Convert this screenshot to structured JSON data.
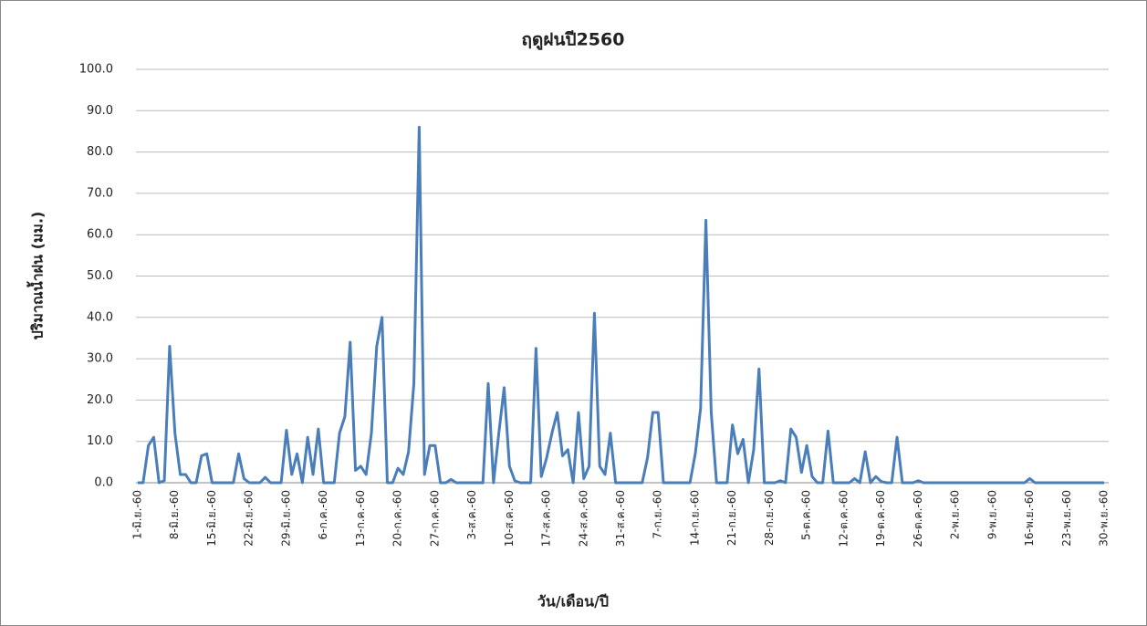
{
  "chart_data": {
    "type": "line",
    "title": "ฤดูฝนปี2560",
    "x_label": "วัน/เดือน/ปี",
    "y_label": "ปริมาณน้ำฝน (มม.)",
    "categories": [
      "1-มิ.ย.-60",
      null,
      null,
      null,
      null,
      null,
      null,
      "8-มิ.ย.-60",
      null,
      null,
      null,
      null,
      null,
      null,
      "15-มิ.ย.-60",
      null,
      null,
      null,
      null,
      null,
      null,
      "22-มิ.ย.-60",
      null,
      null,
      null,
      null,
      null,
      null,
      "29-มิ.ย.-60",
      null,
      null,
      null,
      null,
      null,
      null,
      "6-ก.ค.-60",
      null,
      null,
      null,
      null,
      null,
      null,
      "13-ก.ค.-60",
      null,
      null,
      null,
      null,
      null,
      null,
      "20-ก.ค.-60",
      null,
      null,
      null,
      null,
      null,
      null,
      "27-ก.ค.-60",
      null,
      null,
      null,
      null,
      null,
      null,
      "3-ส.ค.-60",
      null,
      null,
      null,
      null,
      null,
      null,
      "10-ส.ค.-60",
      null,
      null,
      null,
      null,
      null,
      null,
      "17-ส.ค.-60",
      null,
      null,
      null,
      null,
      null,
      null,
      "24-ส.ค.-60",
      null,
      null,
      null,
      null,
      null,
      null,
      "31-ส.ค.-60",
      null,
      null,
      null,
      null,
      null,
      null,
      "7-ก.ย.-60",
      null,
      null,
      null,
      null,
      null,
      null,
      "14-ก.ย.-60",
      null,
      null,
      null,
      null,
      null,
      null,
      "21-ก.ย.-60",
      null,
      null,
      null,
      null,
      null,
      null,
      "28-ก.ย.-60",
      null,
      null,
      null,
      null,
      null,
      null,
      "5-ต.ค.-60",
      null,
      null,
      null,
      null,
      null,
      null,
      "12-ต.ค.-60",
      null,
      null,
      null,
      null,
      null,
      null,
      "19-ต.ค.-60",
      null,
      null,
      null,
      null,
      null,
      null,
      "26-ต.ค.-60",
      null,
      null,
      null,
      null,
      null,
      null,
      "2-พ.ย.-60",
      null,
      null,
      null,
      null,
      null,
      null,
      "9-พ.ย.-60",
      null,
      null,
      null,
      null,
      null,
      null,
      "16-พ.ย.-60",
      null,
      null,
      null,
      null,
      null,
      null,
      "23-พ.ย.-60",
      null,
      null,
      null,
      null,
      null,
      null,
      "30-พ.ย.-60"
    ],
    "values": [
      0,
      0,
      9,
      11,
      0,
      0.5,
      33,
      12,
      2,
      2,
      0,
      0,
      6.5,
      7,
      0,
      0,
      0,
      0,
      0,
      7,
      1,
      0,
      0,
      0,
      1.3,
      0,
      0,
      0,
      12.7,
      2,
      7,
      0,
      11,
      2,
      13,
      0,
      0,
      0,
      12,
      16,
      34,
      3,
      4,
      2,
      12,
      33,
      40,
      0,
      0,
      3.5,
      2,
      7.5,
      24,
      86,
      2,
      9,
      9,
      0,
      0,
      0.8,
      0,
      0,
      0,
      0,
      0,
      0,
      24,
      0,
      12,
      23,
      4,
      0.5,
      0,
      0,
      0,
      32.5,
      1.5,
      6,
      12,
      17,
      6.5,
      8,
      0,
      17,
      1,
      4,
      41,
      4,
      2,
      12,
      0,
      0,
      0,
      0,
      0,
      0,
      6,
      17,
      17,
      0,
      0,
      0,
      0,
      0,
      0,
      7,
      18,
      63.5,
      17,
      0,
      0,
      0,
      14,
      7,
      10.5,
      0,
      8,
      27.5,
      0,
      0,
      0,
      0.5,
      0,
      13,
      11,
      2.5,
      9,
      1.5,
      0,
      0,
      12.5,
      0,
      0,
      0,
      0,
      1,
      0,
      7.5,
      0,
      1.5,
      0.3,
      0,
      0,
      11,
      0,
      0,
      0,
      0.5,
      0,
      0,
      0,
      0,
      0,
      0,
      0,
      0,
      0,
      0,
      0,
      0,
      0,
      0,
      0,
      0,
      0,
      0,
      0,
      0,
      1,
      0,
      0,
      0,
      0,
      0,
      0,
      0,
      0,
      0,
      0,
      0,
      0,
      0,
      0
    ],
    "color": "#4a7ebb",
    "ylim": [
      0,
      100
    ],
    "yticks": [
      {
        "value": 0,
        "label": "0.0"
      },
      {
        "value": 10,
        "label": "10.0"
      },
      {
        "value": 20,
        "label": "20.0"
      },
      {
        "value": 30,
        "label": "30.0"
      },
      {
        "value": 40,
        "label": "40.0"
      },
      {
        "value": 50,
        "label": "50.0"
      },
      {
        "value": 60,
        "label": "60.0"
      },
      {
        "value": 70,
        "label": "70.0"
      },
      {
        "value": 80,
        "label": "80.0"
      },
      {
        "value": 90,
        "label": "90.0"
      },
      {
        "value": 100,
        "label": "100.0"
      }
    ],
    "grid": true
  }
}
